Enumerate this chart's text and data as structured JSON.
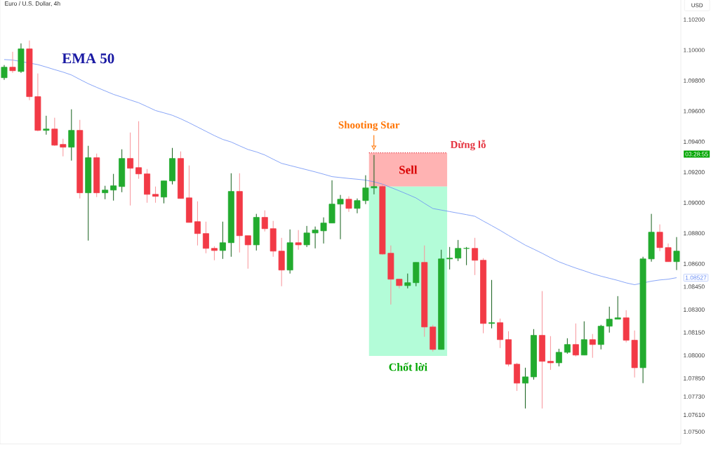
{
  "chart_data": {
    "type": "candlestick",
    "title": "Euro / U.S. Dollar, 4h",
    "ylabel": "USD",
    "categories": [
      null,
      null,
      null,
      null,
      null,
      null,
      null,
      null,
      null,
      null,
      null,
      null,
      null,
      null,
      null,
      null,
      null,
      null,
      null,
      null,
      null,
      null,
      null,
      null,
      null,
      null,
      null,
      null,
      null,
      null,
      null,
      null,
      null,
      null,
      null,
      null,
      null,
      null,
      null,
      null,
      null,
      null,
      null,
      null,
      null,
      null,
      null,
      null,
      null,
      null,
      null,
      null,
      null,
      null,
      null,
      null,
      null,
      null,
      null,
      null,
      null,
      null,
      null,
      null,
      null,
      null,
      null,
      null,
      null,
      null,
      null,
      null,
      null,
      null,
      null,
      null,
      null,
      null,
      null,
      null,
      null
    ],
    "ohlc": [
      [
        1.09819,
        1.09902,
        1.09805,
        1.09888
      ],
      [
        1.09888,
        1.09989,
        1.09851,
        1.09865
      ],
      [
        1.0986,
        1.10044,
        1.09851,
        1.10008
      ],
      [
        1.10008,
        1.10063,
        1.09672,
        1.09695
      ],
      [
        1.09695,
        1.09847,
        1.09469,
        1.09474
      ],
      [
        1.09474,
        1.0957,
        1.09446,
        1.09483
      ],
      [
        1.09483,
        1.09557,
        1.09373,
        1.09377
      ],
      [
        1.09382,
        1.09419,
        1.09304,
        1.09364
      ],
      [
        1.09364,
        1.09612,
        1.09276,
        1.09474
      ],
      [
        1.09474,
        1.09543,
        1.09028,
        1.09065
      ],
      [
        1.09065,
        1.09373,
        1.08752,
        1.09295
      ],
      [
        1.09295,
        1.09322,
        1.09037,
        1.09065
      ],
      [
        1.09065,
        1.09111,
        1.09023,
        1.09083
      ],
      [
        1.09083,
        1.09189,
        1.09014,
        1.09111
      ],
      [
        1.09106,
        1.0935,
        1.09069,
        1.0929
      ],
      [
        1.0929,
        1.0946,
        1.08982,
        1.09226
      ],
      [
        1.0923,
        1.09534,
        1.09157,
        1.09189
      ],
      [
        1.09189,
        1.09221,
        1.09,
        1.09055
      ],
      [
        1.09055,
        1.09106,
        1.09,
        1.09042
      ],
      [
        1.09037,
        1.09143,
        1.08996,
        1.09143
      ],
      [
        1.09143,
        1.09359,
        1.0912,
        1.0929
      ],
      [
        1.0929,
        1.09336,
        1.09028,
        1.09028
      ],
      [
        1.09032,
        1.09244,
        1.08871,
        1.08871
      ],
      [
        1.08876,
        1.09009,
        1.0872,
        1.08798
      ],
      [
        1.08798,
        1.08876,
        1.08669,
        1.08701
      ],
      [
        1.08701,
        1.08715,
        1.08623,
        1.08687
      ],
      [
        1.08687,
        1.08876,
        1.08632,
        1.08738
      ],
      [
        1.08738,
        1.09193,
        1.08646,
        1.09074
      ],
      [
        1.09074,
        1.09193,
        1.08674,
        1.08784
      ],
      [
        1.08784,
        1.08784,
        1.08568,
        1.08724
      ],
      [
        1.08724,
        1.08927,
        1.08687,
        1.08904
      ],
      [
        1.08904,
        1.0895,
        1.08812,
        1.0883
      ],
      [
        1.0883,
        1.08881,
        1.08646,
        1.08683
      ],
      [
        1.08683,
        1.0877,
        1.08453,
        1.08559
      ],
      [
        1.08559,
        1.08825,
        1.08536,
        1.08738
      ],
      [
        1.08738,
        1.08821,
        1.08692,
        1.08724
      ],
      [
        1.08724,
        1.08848,
        1.0871,
        1.08802
      ],
      [
        1.08802,
        1.08844,
        1.08701,
        1.08821
      ],
      [
        1.08816,
        1.08904,
        1.08733,
        1.08867
      ],
      [
        1.08867,
        1.09147,
        1.08867,
        1.08991
      ],
      [
        1.08991,
        1.09051,
        1.08761,
        1.09023
      ],
      [
        1.09023,
        1.09042,
        1.0894,
        1.08963
      ],
      [
        1.08963,
        1.09028,
        1.08931,
        1.09014
      ],
      [
        1.09014,
        1.0918,
        1.08991,
        1.09097
      ],
      [
        1.09097,
        1.09313,
        1.09055,
        1.09106
      ],
      [
        1.09106,
        1.09124,
        1.0866,
        1.08664
      ],
      [
        1.08669,
        1.0872,
        1.08333,
        1.08499
      ],
      [
        1.08499,
        1.08499,
        1.08439,
        1.08457
      ],
      [
        1.08457,
        1.08536,
        1.08439,
        1.08476
      ],
      [
        1.08476,
        1.08609,
        1.08453,
        1.08609
      ],
      [
        1.08609,
        1.0872,
        1.08122,
        1.08186
      ],
      [
        1.08186,
        1.082,
        1.08025,
        1.08039
      ],
      [
        1.08039,
        1.08692,
        1.08039,
        1.08632
      ],
      [
        1.08632,
        1.0871,
        1.08563,
        1.08637
      ],
      [
        1.08637,
        1.08756,
        1.08618,
        1.08701
      ],
      [
        1.08701,
        1.0871,
        1.08591,
        1.08701
      ],
      [
        1.08701,
        1.0877,
        1.08526,
        1.08623
      ],
      [
        1.08623,
        1.08637,
        1.08145,
        1.08209
      ],
      [
        1.08209,
        1.08494,
        1.08177,
        1.08214
      ],
      [
        1.08214,
        1.08241,
        1.08048,
        1.08103
      ],
      [
        1.08103,
        1.08158,
        1.07928,
        1.07942
      ],
      [
        1.07942,
        1.07951,
        1.07767,
        1.07818
      ],
      [
        1.07818,
        1.07919,
        1.07652,
        1.07859
      ],
      [
        1.07859,
        1.08172,
        1.07841,
        1.08131
      ],
      [
        1.08131,
        1.08421,
        1.07652,
        1.07961
      ],
      [
        1.07961,
        1.08126,
        1.07905,
        1.07951
      ],
      [
        1.07951,
        1.08043,
        1.07928,
        1.0802
      ],
      [
        1.0802,
        1.08112,
        1.08011,
        1.08071
      ],
      [
        1.08071,
        1.08209,
        1.07993,
        1.08002
      ],
      [
        1.08002,
        1.08223,
        1.08002,
        1.08103
      ],
      [
        1.08103,
        1.0814,
        1.07984,
        1.08071
      ],
      [
        1.08071,
        1.082,
        1.08039,
        1.08191
      ],
      [
        1.08191,
        1.08319,
        1.08149,
        1.08237
      ],
      [
        1.08237,
        1.08388,
        1.08237,
        1.08246
      ],
      [
        1.08246,
        1.08296,
        1.08085,
        1.08099
      ],
      [
        1.08099,
        1.08163,
        1.07855,
        1.07919
      ],
      [
        1.07919,
        1.08646,
        1.07818,
        1.08632
      ],
      [
        1.08632,
        1.08927,
        1.08614,
        1.08807
      ],
      [
        1.08807,
        1.08858,
        1.08683,
        1.08706
      ],
      [
        1.08706,
        1.08733,
        1.08614,
        1.08614
      ],
      [
        1.08614,
        1.08775,
        1.08559,
        1.08683
      ]
    ],
    "colors": [
      "#22ab2e",
      "#f23a46",
      "#22ab2e",
      "#f23a46",
      "#f23a46",
      "#22ab2e",
      "#f23a46",
      "#f23a46",
      "#22ab2e",
      "#f23a46",
      "#22ab2e",
      "#f23a46",
      "#22ab2e",
      "#22ab2e",
      "#22ab2e",
      "#f23a46",
      "#f23a46",
      "#f23a46",
      "#f23a46",
      "#22ab2e",
      "#22ab2e",
      "#f23a46",
      "#f23a46",
      "#f23a46",
      "#f23a46",
      "#f23a46",
      "#22ab2e",
      "#22ab2e",
      "#f23a46",
      "#f23a46",
      "#22ab2e",
      "#f23a46",
      "#f23a46",
      "#f23a46",
      "#22ab2e",
      "#f23a46",
      "#22ab2e",
      "#22ab2e",
      "#22ab2e",
      "#22ab2e",
      "#22ab2e",
      "#f23a46",
      "#22ab2e",
      "#22ab2e",
      "#22ab2e",
      "#f23a46",
      "#f23a46",
      "#f23a46",
      "#22ab2e",
      "#22ab2e",
      "#f23a46",
      "#f23a46",
      "#22ab2e",
      "#22ab2e",
      "#22ab2e",
      "#22ab2e",
      "#f23a46",
      "#f23a46",
      "#22ab2e",
      "#f23a46",
      "#f23a46",
      "#f23a46",
      "#22ab2e",
      "#22ab2e",
      "#f23a46",
      "#f23a46",
      "#22ab2e",
      "#22ab2e",
      "#f23a46",
      "#22ab2e",
      "#f23a46",
      "#22ab2e",
      "#22ab2e",
      "#22ab2e",
      "#f23a46",
      "#f23a46",
      "#22ab2e",
      "#22ab2e",
      "#f23a46",
      "#f23a46",
      "#22ab2e"
    ],
    "series": [
      {
        "type": "line",
        "name": "EMA 50",
        "color": "#6a8ef5",
        "values": [
          1.09938,
          1.09935,
          null,
          null,
          1.09905,
          1.09889,
          1.09872,
          1.09856,
          1.09837,
          1.09808,
          1.0978,
          1.09756,
          1.09733,
          1.0971,
          1.09692,
          1.09673,
          1.09655,
          1.0963,
          1.09604,
          1.09589,
          1.09573,
          1.0955,
          1.09524,
          1.09496,
          1.09468,
          1.0944,
          1.09415,
          1.09398,
          1.09373,
          1.09349,
          1.09333,
          1.09313,
          1.09285,
          1.09258,
          1.09244,
          1.0923,
          1.09216,
          1.09202,
          1.09187,
          1.09171,
          1.09165,
          1.09159,
          1.09154,
          1.09148,
          1.09137,
          1.09122,
          1.091,
          1.09078,
          1.09055,
          1.09031,
          1.08996,
          1.08962,
          1.08952,
          1.08942,
          1.08932,
          1.08922,
          1.08911,
          1.0888,
          1.0885,
          1.08819,
          1.08786,
          1.08754,
          1.08722,
          1.08696,
          1.08669,
          1.0864,
          1.08613,
          1.08592,
          1.08572,
          1.08554,
          1.08535,
          1.08519,
          1.08505,
          1.08491,
          1.08475,
          1.08463,
          null,
          1.08486,
          1.08494,
          1.08499,
          1.08509
        ]
      }
    ],
    "ylim": [
      1.0742,
      1.1035
    ],
    "yticks": [
      {
        "value": 1.102,
        "label": "1.10200"
      },
      {
        "value": 1.1,
        "label": "1.10000"
      },
      {
        "value": 1.098,
        "label": "1.09800"
      },
      {
        "value": 1.096,
        "label": "1.09600"
      },
      {
        "value": 1.094,
        "label": "1.09400"
      },
      {
        "value": 1.092,
        "label": "1.09200"
      },
      {
        "value": 1.09,
        "label": "1.09000"
      },
      {
        "value": 1.088,
        "label": "1.08800"
      },
      {
        "value": 1.086,
        "label": "1.08600"
      },
      {
        "value": 1.0845,
        "label": "1.08450"
      },
      {
        "value": 1.083,
        "label": "1.08300"
      },
      {
        "value": 1.0815,
        "label": "1.08150"
      },
      {
        "value": 1.08,
        "label": "1.08000"
      },
      {
        "value": 1.0785,
        "label": "1.07850"
      },
      {
        "value": 1.0773,
        "label": "1.07730"
      },
      {
        "value": 1.0761,
        "label": "1.07610"
      },
      {
        "value": 1.075,
        "label": "1.07500"
      }
    ],
    "tick_labels": "y",
    "bands": [
      {
        "axis": "y",
        "from": 1.09106,
        "to": 1.09327,
        "label": "Sell",
        "color": "#ffb3b3"
      },
      {
        "axis": "y",
        "from": 1.07996,
        "to": 1.09106,
        "label": "Chốt lời",
        "color": "#b3fcd8"
      }
    ],
    "ref_lines": [
      {
        "axis": "y",
        "value": 1.09327,
        "label": "Dừng lỗ",
        "color": "#e5333f",
        "line_style": "dotted"
      }
    ],
    "annotations": [
      "Shooting Star",
      "03:28:55",
      "1.08527"
    ]
  }
}
